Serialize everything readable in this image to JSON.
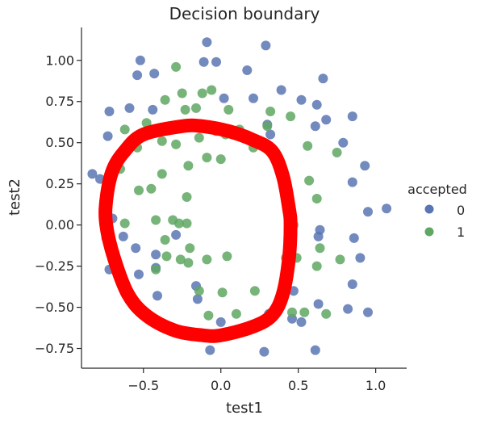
{
  "chart_data": {
    "type": "scatter",
    "title": "Decision boundary",
    "xlabel": "test1",
    "ylabel": "test2",
    "xlim": [
      -0.9,
      1.2
    ],
    "ylim": [
      -0.87,
      1.2
    ],
    "xticks": [
      -0.5,
      0.0,
      0.5,
      1.0
    ],
    "xtick_labels": [
      "−0.5",
      "0.0",
      "0.5",
      "1.0"
    ],
    "yticks": [
      -0.75,
      -0.5,
      -0.25,
      0.0,
      0.25,
      0.5,
      0.75,
      1.0
    ],
    "ytick_labels": [
      "−0.75",
      "−0.50",
      "−0.25",
      "0.00",
      "0.25",
      "0.50",
      "0.75",
      "1.00"
    ],
    "grid": false,
    "legend": {
      "title": "accepted",
      "placement": "right",
      "entries": [
        {
          "label": "0",
          "color": "#5975b3"
        },
        {
          "label": "1",
          "color": "#5fa762"
        }
      ]
    },
    "boundary": {
      "color": "#ff0000",
      "shape": "closed-curve",
      "points": [
        [
          -0.25,
          0.6
        ],
        [
          -0.12,
          0.6
        ],
        [
          0.05,
          0.57
        ],
        [
          0.2,
          0.52
        ],
        [
          0.33,
          0.45
        ],
        [
          0.4,
          0.3
        ],
        [
          0.44,
          0.1
        ],
        [
          0.45,
          0.0
        ],
        [
          0.44,
          -0.2
        ],
        [
          0.4,
          -0.42
        ],
        [
          0.33,
          -0.55
        ],
        [
          0.2,
          -0.62
        ],
        [
          0.0,
          -0.67
        ],
        [
          -0.12,
          -0.67
        ],
        [
          -0.3,
          -0.64
        ],
        [
          -0.48,
          -0.55
        ],
        [
          -0.6,
          -0.42
        ],
        [
          -0.69,
          -0.2
        ],
        [
          -0.74,
          0.0
        ],
        [
          -0.74,
          0.15
        ],
        [
          -0.7,
          0.33
        ],
        [
          -0.62,
          0.45
        ],
        [
          -0.5,
          0.55
        ]
      ]
    },
    "series": [
      {
        "name": "0",
        "color": "#5975b3",
        "points": [
          [
            -0.09,
            1.11
          ],
          [
            0.29,
            1.09
          ],
          [
            -0.52,
            1.0
          ],
          [
            -0.11,
            0.99
          ],
          [
            -0.03,
            0.99
          ],
          [
            -0.43,
            0.92
          ],
          [
            -0.54,
            0.91
          ],
          [
            0.17,
            0.94
          ],
          [
            0.39,
            0.82
          ],
          [
            0.66,
            0.89
          ],
          [
            -0.72,
            0.69
          ],
          [
            -0.59,
            0.71
          ],
          [
            -0.44,
            0.7
          ],
          [
            0.02,
            0.77
          ],
          [
            0.21,
            0.77
          ],
          [
            0.52,
            0.76
          ],
          [
            0.62,
            0.73
          ],
          [
            0.68,
            0.64
          ],
          [
            0.61,
            0.6
          ],
          [
            0.85,
            0.66
          ],
          [
            -0.73,
            0.54
          ],
          [
            0.3,
            0.61
          ],
          [
            0.32,
            0.55
          ],
          [
            0.79,
            0.5
          ],
          [
            0.93,
            0.36
          ],
          [
            -0.83,
            0.31
          ],
          [
            -0.78,
            0.28
          ],
          [
            -0.7,
            0.04
          ],
          [
            0.85,
            0.26
          ],
          [
            0.95,
            0.08
          ],
          [
            1.07,
            0.1
          ],
          [
            -0.74,
            -0.08
          ],
          [
            0.64,
            -0.03
          ],
          [
            0.63,
            -0.07
          ],
          [
            -0.63,
            -0.07
          ],
          [
            -0.55,
            -0.14
          ],
          [
            -0.42,
            -0.18
          ],
          [
            -0.29,
            -0.06
          ],
          [
            0.86,
            -0.08
          ],
          [
            0.9,
            -0.2
          ],
          [
            -0.68,
            -0.23
          ],
          [
            -0.42,
            -0.26
          ],
          [
            -0.53,
            -0.3
          ],
          [
            -0.41,
            -0.43
          ],
          [
            -0.16,
            -0.37
          ],
          [
            0.47,
            -0.4
          ],
          [
            0.85,
            -0.36
          ],
          [
            -0.15,
            -0.45
          ],
          [
            0.63,
            -0.48
          ],
          [
            0.82,
            -0.51
          ],
          [
            0.31,
            -0.54
          ],
          [
            0.46,
            -0.57
          ],
          [
            0.52,
            -0.59
          ],
          [
            0.95,
            -0.53
          ],
          [
            0.0,
            -0.59
          ],
          [
            -0.26,
            -0.64
          ],
          [
            -0.07,
            -0.76
          ],
          [
            0.28,
            -0.77
          ],
          [
            0.61,
            -0.76
          ],
          [
            -0.72,
            -0.27
          ]
        ]
      },
      {
        "name": "1",
        "color": "#5fa762",
        "points": [
          [
            -0.29,
            0.96
          ],
          [
            -0.25,
            0.8
          ],
          [
            -0.12,
            0.8
          ],
          [
            -0.06,
            0.82
          ],
          [
            -0.36,
            0.76
          ],
          [
            -0.23,
            0.7
          ],
          [
            -0.16,
            0.71
          ],
          [
            0.05,
            0.7
          ],
          [
            0.32,
            0.69
          ],
          [
            -0.62,
            0.58
          ],
          [
            -0.48,
            0.62
          ],
          [
            -0.14,
            0.53
          ],
          [
            -0.03,
            0.57
          ],
          [
            0.03,
            0.55
          ],
          [
            0.12,
            0.58
          ],
          [
            0.3,
            0.6
          ],
          [
            0.45,
            0.66
          ],
          [
            0.56,
            0.48
          ],
          [
            0.75,
            0.44
          ],
          [
            -0.54,
            0.47
          ],
          [
            -0.38,
            0.51
          ],
          [
            -0.29,
            0.49
          ],
          [
            0.21,
            0.47
          ],
          [
            -0.65,
            0.34
          ],
          [
            -0.38,
            0.31
          ],
          [
            -0.21,
            0.36
          ],
          [
            -0.09,
            0.41
          ],
          [
            0.0,
            0.4
          ],
          [
            0.57,
            0.27
          ],
          [
            -0.53,
            0.21
          ],
          [
            -0.45,
            0.22
          ],
          [
            -0.22,
            0.17
          ],
          [
            0.62,
            0.16
          ],
          [
            -0.62,
            0.01
          ],
          [
            -0.42,
            0.03
          ],
          [
            -0.31,
            0.03
          ],
          [
            -0.27,
            0.01
          ],
          [
            -0.22,
            0.01
          ],
          [
            0.47,
            0.0
          ],
          [
            -0.36,
            -0.09
          ],
          [
            -0.2,
            -0.14
          ],
          [
            0.64,
            -0.14
          ],
          [
            0.42,
            -0.2
          ],
          [
            0.49,
            -0.2
          ],
          [
            -0.35,
            -0.19
          ],
          [
            -0.26,
            -0.21
          ],
          [
            -0.21,
            -0.23
          ],
          [
            -0.09,
            -0.21
          ],
          [
            0.04,
            -0.19
          ],
          [
            0.77,
            -0.21
          ],
          [
            -0.42,
            -0.27
          ],
          [
            0.62,
            -0.25
          ],
          [
            -0.14,
            -0.4
          ],
          [
            0.01,
            -0.41
          ],
          [
            0.22,
            -0.4
          ],
          [
            0.46,
            -0.53
          ],
          [
            0.54,
            -0.53
          ],
          [
            0.68,
            -0.54
          ],
          [
            -0.08,
            -0.55
          ],
          [
            0.1,
            -0.54
          ]
        ]
      }
    ]
  }
}
